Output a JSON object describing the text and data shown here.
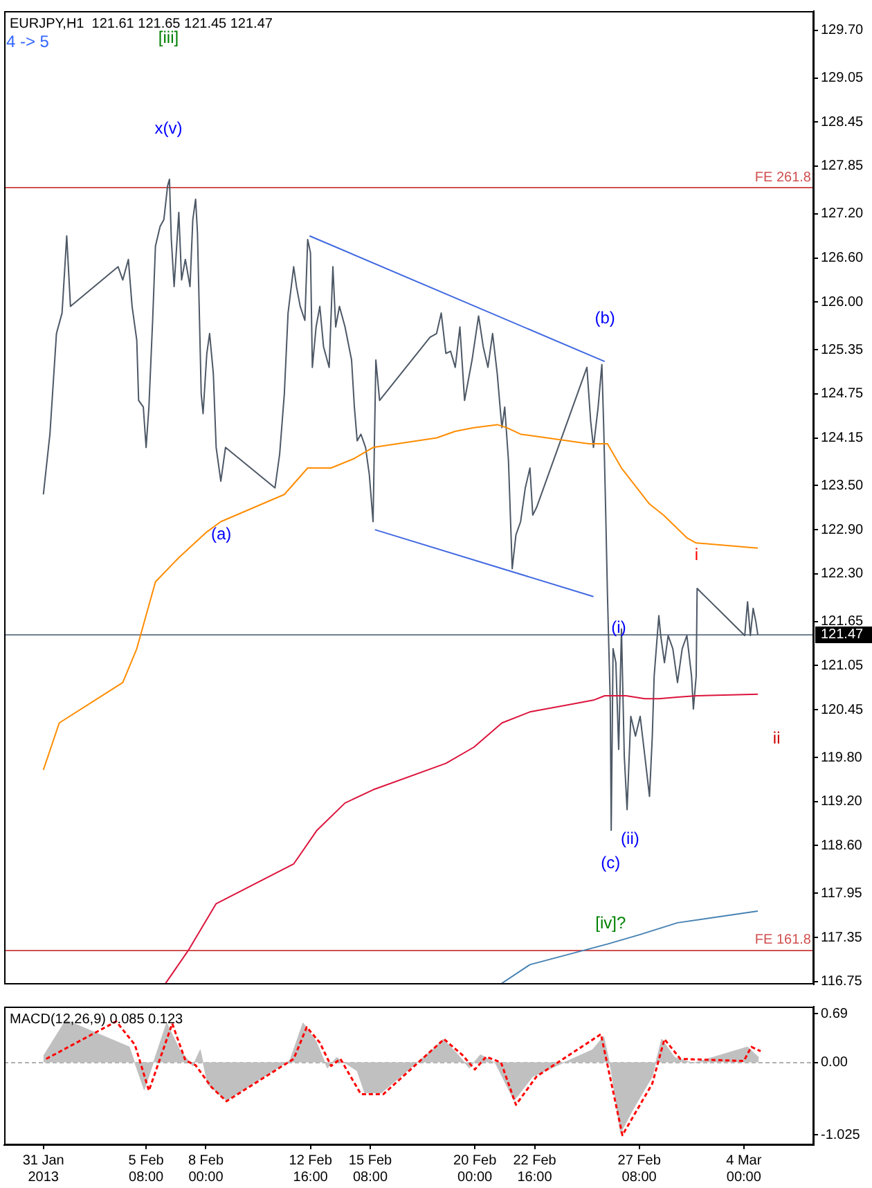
{
  "chart_data": [
    {
      "type": "line",
      "title": "EURJPY,H1  121.61 121.65 121.45 121.47",
      "xlim": [
        "2013-01-30T00:00",
        "2013-03-07T03:00"
      ],
      "ylim": [
        116.71,
        129.96
      ],
      "tick_labels": "y",
      "yticks": [
        {
          "value": 129.7,
          "label": "129.70"
        },
        129.05,
        128.45,
        127.85,
        {
          "value": 127.2,
          "label": "127.20"
        },
        {
          "value": 126.6,
          "label": "126.60"
        },
        {
          "value": 126,
          "label": "126.00"
        },
        125.35,
        124.75,
        124.15,
        {
          "value": 123.5,
          "label": "123.50"
        },
        {
          "value": 122.9,
          "label": "122.90"
        },
        {
          "value": 122.3,
          "label": "122.30"
        },
        121.65,
        121.05,
        120.45,
        {
          "value": 119.8,
          "label": "119.80"
        },
        {
          "value": 119.2,
          "label": "119.20"
        },
        {
          "value": 118.6,
          "label": "118.60"
        },
        117.95,
        117.35,
        116.75
      ],
      "series": [
        {
          "color": "#4d5866",
          "x": [
            "2013-01-31T18:00",
            "2013-02-01T01:00",
            "2013-02-01T08:00",
            "2013-02-01T14:00",
            "2013-02-01T19:00",
            "2013-02-01T23:00",
            "2013-02-04T02:00",
            "2013-02-04T07:00",
            "2013-02-04T13:00",
            "2013-02-04T17:00",
            "2013-02-04T22:00",
            "2013-02-05T00:00",
            "2013-02-05T05:00",
            "2013-02-05T08:00",
            "2013-02-05T11:00",
            "2013-02-05T15:00",
            "2013-02-05T18:00",
            "2013-02-05T23:00",
            "2013-02-06T03:00",
            "2013-02-06T07:00",
            "2013-02-06T09:00",
            "2013-02-06T11:00",
            "2013-02-06T14:00",
            "2013-02-06T19:00",
            "2013-02-06T22:00",
            "2013-02-07T02:00",
            "2013-02-07T07:00",
            "2013-02-07T10:00",
            "2013-02-07T13:00",
            "2013-02-07T15:00",
            "2013-02-07T19:00",
            "2013-02-07T21:00",
            "2013-02-08T01:00",
            "2013-02-08T04:00",
            "2013-02-08T08:00",
            "2013-02-08T11:00",
            "2013-02-08T16:00",
            "2013-02-08T21:00",
            "2013-02-11T02:00",
            "2013-02-11T07:00",
            "2013-02-11T12:00",
            "2013-02-11T16:00",
            "2013-02-11T22:00",
            "2013-02-12T01:00",
            "2013-02-12T05:00",
            "2013-02-12T10:00",
            "2013-02-12T13:00",
            "2013-02-12T16:00",
            "2013-02-12T18:00",
            "2013-02-12T22:00",
            "2013-02-13T02:00",
            "2013-02-13T06:00",
            "2013-02-13T12:00",
            "2013-02-13T16:00",
            "2013-02-13T19:00",
            "2013-02-13T23:00",
            "2013-02-14T05:00",
            "2013-02-14T12:00",
            "2013-02-14T15:00",
            "2013-02-14T18:00",
            "2013-02-14T22:00",
            "2013-02-15T03:00",
            "2013-02-15T07:00",
            "2013-02-15T11:00",
            "2013-02-15T14:00",
            "2013-02-15T18:00",
            "2013-02-18T00:00",
            "2013-02-18T07:00",
            "2013-02-18T12:00",
            "2013-02-18T17:00",
            "2013-02-18T22:00",
            "2013-02-19T03:00",
            "2013-02-19T08:00",
            "2013-02-19T13:00",
            "2013-02-19T21:00",
            "2013-02-20T04:00",
            "2013-02-20T09:00",
            "2013-02-20T14:00",
            "2013-02-20T19:00",
            "2013-02-21T00:00",
            "2013-02-21T03:00",
            "2013-02-21T05:00",
            "2013-02-21T08:00",
            "2013-02-21T12:00",
            "2013-02-21T16:00",
            "2013-02-21T20:00",
            "2013-02-22T01:00",
            "2013-02-22T06:00",
            "2013-02-22T11:00",
            "2013-02-22T14:00",
            "2013-02-22T18:00",
            "2013-02-25T00:00",
            "2013-02-25T04:00",
            "2013-02-25T07:00",
            "2013-02-25T12:00",
            "2013-02-25T16:00",
            "2013-02-25T18:00",
            "2013-02-25T20:00",
            "2013-02-25T22:00",
            "2013-02-26T01:00",
            "2013-02-26T02:00",
            "2013-02-26T04:00",
            "2013-02-26T07:00",
            "2013-02-26T10:00",
            "2013-02-26T13:00",
            "2013-02-26T16:00",
            "2013-02-26T19:00",
            "2013-02-26T23:00",
            "2013-02-27T04:00",
            "2013-02-27T09:00",
            "2013-02-27T14:00",
            "2013-02-27T19:00",
            "2013-02-27T22:00",
            "2013-02-28T00:00",
            "2013-02-28T05:00",
            "2013-02-28T07:00",
            "2013-02-28T11:00",
            "2013-02-28T15:00",
            "2013-02-28T20:00",
            "2013-03-01T01:00",
            "2013-03-01T06:00",
            "2013-03-01T11:00",
            "2013-03-01T16:00",
            "2013-03-01T18:00",
            "2013-03-01T21:00",
            "2013-03-01T22:00",
            "2013-03-04T01:00",
            "2013-03-04T04:00",
            "2013-03-04T07:00",
            "2013-03-04T10:00",
            "2013-03-04T13:00",
            "2013-03-04T15:00"
          ],
          "values": [
            123.38,
            124.2,
            125.57,
            125.85,
            126.9,
            125.94,
            126.48,
            126.3,
            126.58,
            125.94,
            125.48,
            124.66,
            124.57,
            124.02,
            124.57,
            125.75,
            126.76,
            127.03,
            127.12,
            127.58,
            127.67,
            126.85,
            126.21,
            127.22,
            126.3,
            126.58,
            126.21,
            127.12,
            127.4,
            126.94,
            124.75,
            124.48,
            125.3,
            125.57,
            125.02,
            124.02,
            123.56,
            124.02,
            123.47,
            123.93,
            124.75,
            125.85,
            126.48,
            126.21,
            125.94,
            125.75,
            126.85,
            126.67,
            125.11,
            125.66,
            125.94,
            125.39,
            125.11,
            126.48,
            125.66,
            125.94,
            125.66,
            125.21,
            124.57,
            124.11,
            124.2,
            124.02,
            123.65,
            123.01,
            125.21,
            124.66,
            125.52,
            125.57,
            125.85,
            125.3,
            125.33,
            125.11,
            125.66,
            124.66,
            125.21,
            125.81,
            125.39,
            125.11,
            125.57,
            125.02,
            124.57,
            124.29,
            124.57,
            123.84,
            122.37,
            122.83,
            123.01,
            123.47,
            123.74,
            123.1,
            123.2,
            125.11,
            124.38,
            124.02,
            124.57,
            125.15,
            124.29,
            123.2,
            122.01,
            120.55,
            118.81,
            121.28,
            121.09,
            119.91,
            121.55,
            119.82,
            119.09,
            120.36,
            120.09,
            120.36,
            119.82,
            119.27,
            120.09,
            120.91,
            121.73,
            121.46,
            121.09,
            121.46,
            121.28,
            120.82,
            121.28,
            121.46,
            120.91,
            120.46,
            120.91,
            122.1,
            121.46,
            121.92,
            121.46,
            121.83,
            121.64,
            121.47
          ]
        },
        {
          "color": "#ff8c00",
          "x": [
            "2013-01-31T18:00",
            "2013-02-01T11:00",
            "2013-02-04T07:00",
            "2013-02-04T22:00",
            "2013-02-05T18:00",
            "2013-02-06T19:00",
            "2013-02-08T01:00",
            "2013-02-08T16:00",
            "2013-02-11T12:00",
            "2013-02-12T13:00",
            "2013-02-13T14:00",
            "2013-02-14T15:00",
            "2013-02-15T11:00",
            "2013-02-18T07:00",
            "2013-02-19T03:00",
            "2013-02-19T23:00",
            "2013-02-21T00:00",
            "2013-02-21T10:00",
            "2013-02-22T01:00",
            "2013-02-25T02:00",
            "2013-02-25T12:00",
            "2013-02-25T22:00",
            "2013-02-26T13:00",
            "2013-02-27T19:00",
            "2013-02-28T10:00",
            "2013-03-01T11:00",
            "2013-03-01T21:00",
            "2013-03-04T15:00"
          ],
          "values": [
            119.63,
            120.27,
            120.82,
            121.28,
            122.19,
            122.52,
            122.87,
            123.01,
            123.38,
            123.74,
            123.74,
            123.87,
            124.02,
            124.15,
            124.24,
            124.29,
            124.33,
            124.29,
            124.2,
            124.07,
            124.07,
            124.07,
            123.74,
            123.25,
            123.1,
            122.79,
            122.72,
            122.65
          ]
        },
        {
          "color": "#dc143c",
          "x": [
            "2013-02-06T04:00",
            "2013-02-07T05:00",
            "2013-02-08T11:00",
            "2013-02-11T22:00",
            "2013-02-12T23:00",
            "2013-02-14T05:00",
            "2013-02-15T11:00",
            "2013-02-18T17:00",
            "2013-02-19T23:00",
            "2013-02-21T05:00",
            "2013-02-22T11:00",
            "2013-02-25T07:00",
            "2013-02-25T19:00",
            "2013-02-26T18:00",
            "2013-02-27T14:00",
            "2013-02-28T05:00",
            "2013-03-01T01:00",
            "2013-03-01T21:00",
            "2013-03-04T15:00"
          ],
          "values": [
            116.71,
            117.17,
            117.81,
            118.35,
            118.81,
            119.18,
            119.36,
            119.72,
            119.94,
            120.27,
            120.42,
            120.58,
            120.64,
            120.64,
            120.6,
            120.6,
            120.62,
            120.64,
            120.66
          ]
        },
        {
          "color": "#4682b4",
          "x": [
            "2013-02-21T03:00",
            "2013-02-22T11:00",
            "2013-02-25T22:00",
            "2013-02-27T09:00",
            "2013-03-01T01:00",
            "2013-03-04T15:00"
          ],
          "values": [
            116.71,
            116.98,
            117.26,
            117.39,
            117.55,
            117.71
          ]
        },
        {
          "color": "#4169e1",
          "x": [
            "2013-02-12T15:00",
            "2013-02-25T19:00"
          ],
          "values": [
            126.9,
            125.19
          ]
        },
        {
          "color": "#4169e1",
          "x": [
            "2013-02-15T13:00",
            "2013-02-25T07:00"
          ],
          "values": [
            122.9,
            121.99
          ]
        }
      ],
      "ref_lines": [
        {
          "axis": "y",
          "value": 127.56,
          "label": "FE 261.8",
          "color": "#d05050"
        },
        {
          "axis": "y",
          "value": 117.19,
          "label": "FE 161.8",
          "color": "#d05050"
        },
        {
          "axis": "y",
          "value": 121.47,
          "label": "121.47",
          "color": "#708090"
        }
      ],
      "annotations": [
        "4 -> 5",
        "[iii]",
        "x(v)",
        "(a)",
        "(b)",
        "(c)",
        "(i)",
        "(ii)",
        "i",
        "ii",
        "[iv]?"
      ]
    },
    {
      "type": "area",
      "title": "MACD(12,26,9) 0.085 0.123",
      "xlim": [
        "2013-01-30T00:00",
        "2013-03-07T03:00"
      ],
      "ylim": [
        -1.17,
        0.79
      ],
      "xticks": [
        {
          "value": "2013-01-31T18:00",
          "label": "31 Jan 2013"
        },
        {
          "value": "2013-02-05T08:00",
          "label": "5 Feb 08:00"
        },
        {
          "value": "2013-02-08T00:00",
          "label": "8 Feb 00:00"
        },
        {
          "value": "2013-02-12T16:00",
          "label": "12 Feb 16:00"
        },
        {
          "value": "2013-02-15T08:00",
          "label": "15 Feb 08:00"
        },
        {
          "value": "2013-02-20T00:00",
          "label": "20 Feb 00:00"
        },
        {
          "value": "2013-02-22T16:00",
          "label": "22 Feb 16:00"
        },
        {
          "value": "2013-02-27T08:00",
          "label": "27 Feb 08:00"
        },
        {
          "value": "2013-03-04T00:00",
          "label": "4 Mar 00:00"
        }
      ],
      "yticks": [
        0.69,
        {
          "value": 0,
          "label": "0.00"
        },
        -1.025
      ],
      "series": [
        {
          "color": "#c0c0c0",
          "x": [
            "2013-01-31T18:00",
            "2013-02-01T18:00",
            "2013-02-04T14:00",
            "2013-02-05T06:00",
            "2013-02-06T06:00",
            "2013-02-06T20:00",
            "2013-02-07T10:00",
            "2013-02-07T18:00",
            "2013-02-08T02:00",
            "2013-02-08T22:00",
            "2013-02-11T18:00",
            "2013-02-12T08:00",
            "2013-02-12T22:00",
            "2013-02-13T10:00",
            "2013-02-13T20:00",
            "2013-02-14T18:00",
            "2013-02-15T02:00",
            "2013-02-15T20:00",
            "2013-02-18T06:00",
            "2013-02-18T14:00",
            "2013-02-19T06:00",
            "2013-02-19T18:00",
            "2013-02-20T06:00",
            "2013-02-20T22:00",
            "2013-02-21T18:00",
            "2013-02-22T14:00",
            "2013-02-25T06:00",
            "2013-02-25T18:00",
            "2013-02-26T02:00",
            "2013-02-26T12:00",
            "2013-02-27T02:00",
            "2013-02-27T22:00",
            "2013-02-28T08:00",
            "2013-02-28T22:00",
            "2013-03-01T18:00",
            "2013-03-04T04:00",
            "2013-03-04T16:00"
          ],
          "values": [
            0.09,
            0.6,
            0.22,
            -0.39,
            0.56,
            0.18,
            -0.05,
            0.18,
            -0.31,
            -0.54,
            0.03,
            0.56,
            0.3,
            -0.08,
            0.07,
            -0.12,
            -0.43,
            -0.43,
            0.22,
            0.33,
            0.11,
            -0.08,
            0.11,
            -0.01,
            -0.54,
            -0.2,
            0.18,
            0.37,
            -0.12,
            -1.0,
            -0.65,
            -0.2,
            0.33,
            0.07,
            -0.01,
            0.22,
            0.07
          ]
        },
        {
          "type": "line",
          "color": "#ff0000",
          "line_style": "dashed",
          "x": [
            "2013-01-31T21:00",
            "2013-02-04T00:00",
            "2013-02-04T20:00",
            "2013-02-05T11:00",
            "2013-02-06T12:00",
            "2013-02-07T02:00",
            "2013-02-07T13:00",
            "2013-02-08T06:00",
            "2013-02-08T22:00",
            "2013-02-11T22:00",
            "2013-02-12T12:00",
            "2013-02-13T02:00",
            "2013-02-13T14:00",
            "2013-02-14T00:00",
            "2013-02-14T22:00",
            "2013-02-15T22:00",
            "2013-02-18T15:00",
            "2013-02-19T11:00",
            "2013-02-20T00:00",
            "2013-02-20T12:00",
            "2013-02-21T04:00",
            "2013-02-21T20:00",
            "2013-02-22T18:00",
            "2013-02-25T15:00",
            "2013-02-26T14:00",
            "2013-02-27T22:00",
            "2013-02-28T11:00",
            "2013-03-01T04:00",
            "2013-03-04T00:00",
            "2013-03-04T08:00",
            "2013-03-04T18:00"
          ],
          "values": [
            0.05,
            0.58,
            0.25,
            -0.4,
            0.55,
            0.03,
            -0.04,
            -0.35,
            -0.55,
            0.05,
            0.5,
            0.28,
            -0.05,
            0.05,
            -0.45,
            -0.45,
            0.33,
            0.1,
            -0.1,
            0.08,
            0.0,
            -0.6,
            -0.2,
            0.4,
            -1.03,
            -0.3,
            0.33,
            0.05,
            0.02,
            0.22,
            0.16
          ]
        }
      ],
      "ref_lines": [
        {
          "axis": "y",
          "value": 0,
          "color": "#b0b0b0",
          "line_style": "dashed"
        }
      ]
    }
  ]
}
